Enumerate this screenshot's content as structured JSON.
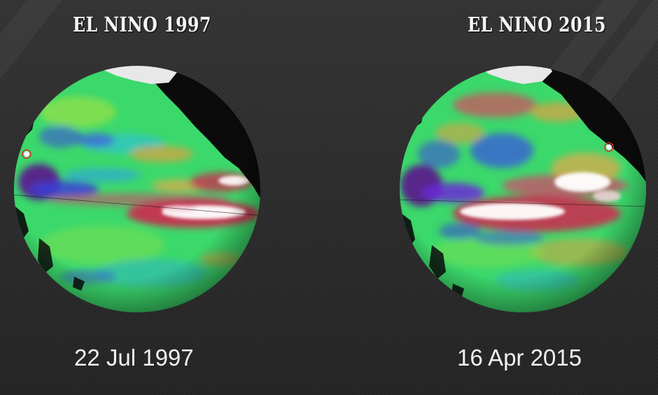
{
  "panels": [
    {
      "title": "EL NINO 1997",
      "date": "22 Jul 1997",
      "globe_icon": "earth-globe-sea-surface-height-map"
    },
    {
      "title": "EL NINO 2015",
      "date": "16 Apr 2015",
      "globe_icon": "earth-globe-sea-surface-height-map"
    }
  ],
  "colors": {
    "background": "#2a2a2a",
    "ocean_base": "#3ee06a",
    "cool_anomaly": "#2f4fd6",
    "strong_cool_anomaly": "#6a1a8a",
    "warm_anomaly": "#d63a55",
    "peak_warm_anomaly": "#ffffff",
    "land": "#0b0b0b",
    "ice": "#e8e8e8"
  }
}
